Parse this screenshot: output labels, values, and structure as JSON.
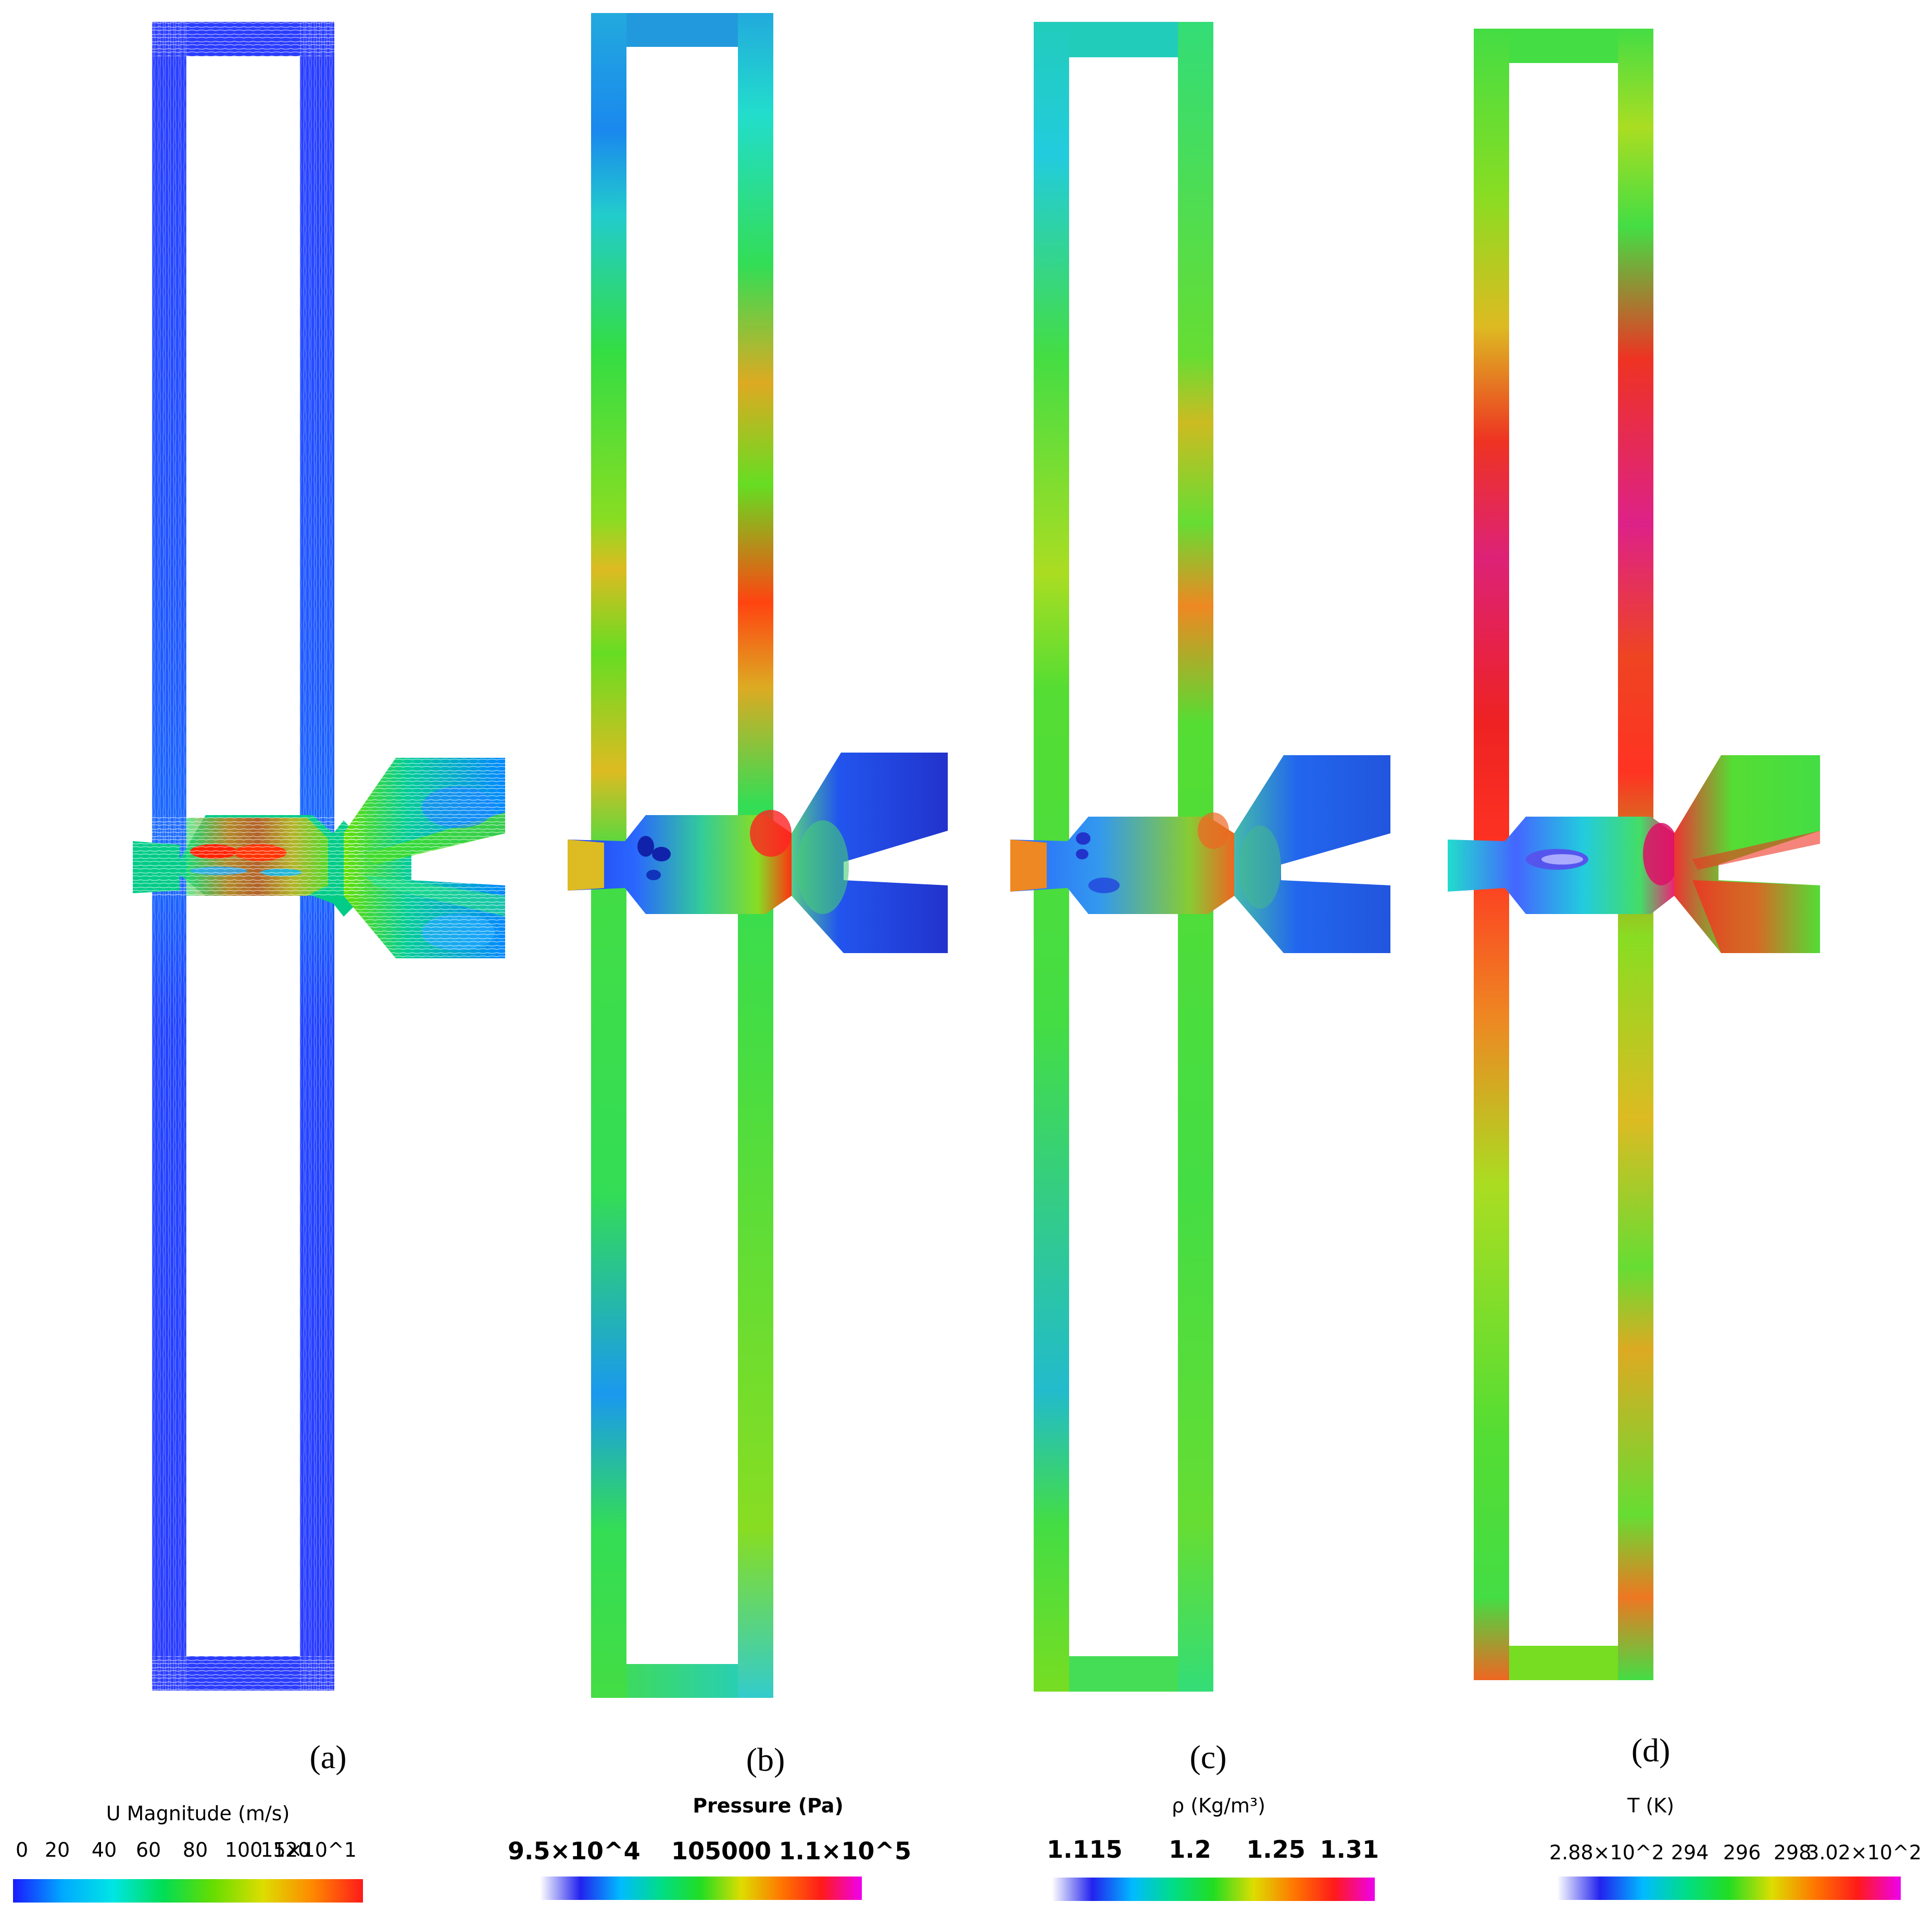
{
  "panels": [
    {
      "id": "a",
      "label": "(a)",
      "colorbar": {
        "title": "U Magnitude (m/s)",
        "ticks": [
          "0",
          "20",
          "40",
          "60",
          "80",
          "100",
          "120",
          "15×10^1"
        ],
        "stops": [
          "#1a1aff",
          "#00aaff",
          "#00e5e5",
          "#00dd55",
          "#66dd00",
          "#dddd00",
          "#ff8800",
          "#ff1a1a"
        ]
      }
    },
    {
      "id": "b",
      "label": "(b)",
      "colorbar": {
        "title": "Pressure (Pa)",
        "ticks": [
          "9.5×10^4",
          "105000",
          "1.1×10^5"
        ],
        "stops": [
          "#ffffff",
          "#2222ee",
          "#00bbff",
          "#00dd88",
          "#22dd22",
          "#dddd00",
          "#ff7700",
          "#ff1a1a",
          "#ee00ee"
        ]
      }
    },
    {
      "id": "c",
      "label": "(c)",
      "colorbar": {
        "title": "ρ (Kg/m³)",
        "ticks": [
          "1.115",
          "1.2",
          "1.25",
          "1.31"
        ],
        "stops": [
          "#ffffff",
          "#2222ee",
          "#00bbff",
          "#00dd88",
          "#22dd22",
          "#dddd00",
          "#ff7700",
          "#ff1a1a",
          "#ee00ee"
        ]
      }
    },
    {
      "id": "d",
      "label": "(d)",
      "colorbar": {
        "title": "T (K)",
        "ticks": [
          "2.88×10^2",
          "294",
          "296",
          "298",
          "3.02×10^2"
        ],
        "stops": [
          "#ffffff",
          "#2222ee",
          "#00bbff",
          "#00dd88",
          "#22dd22",
          "#dddd00",
          "#ff7700",
          "#ff1a1a",
          "#ee00ee"
        ]
      }
    }
  ]
}
